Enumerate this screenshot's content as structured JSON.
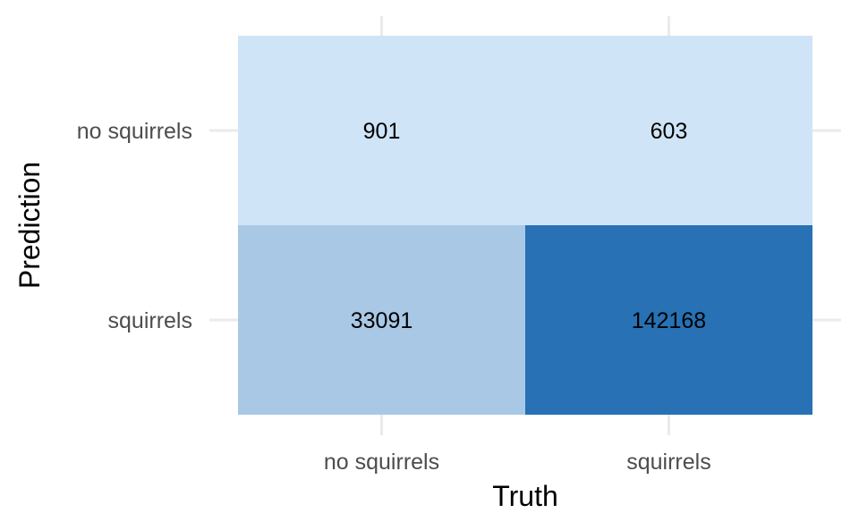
{
  "chart_data": {
    "type": "heatmap",
    "xlabel": "Truth",
    "ylabel": "Prediction",
    "x_categories": [
      "no squirrels",
      "squirrels"
    ],
    "y_categories": [
      "no squirrels",
      "squirrels"
    ],
    "cells": [
      {
        "prediction": "no squirrels",
        "truth": "no squirrels",
        "value": 901
      },
      {
        "prediction": "no squirrels",
        "truth": "squirrels",
        "value": 603
      },
      {
        "prediction": "squirrels",
        "truth": "no squirrels",
        "value": 33091
      },
      {
        "prediction": "squirrels",
        "truth": "squirrels",
        "value": 142168
      }
    ],
    "color_scale": [
      "#cfe4f7",
      "#a9c8e6",
      "#2771b4"
    ],
    "grid": true,
    "legend": "none"
  }
}
